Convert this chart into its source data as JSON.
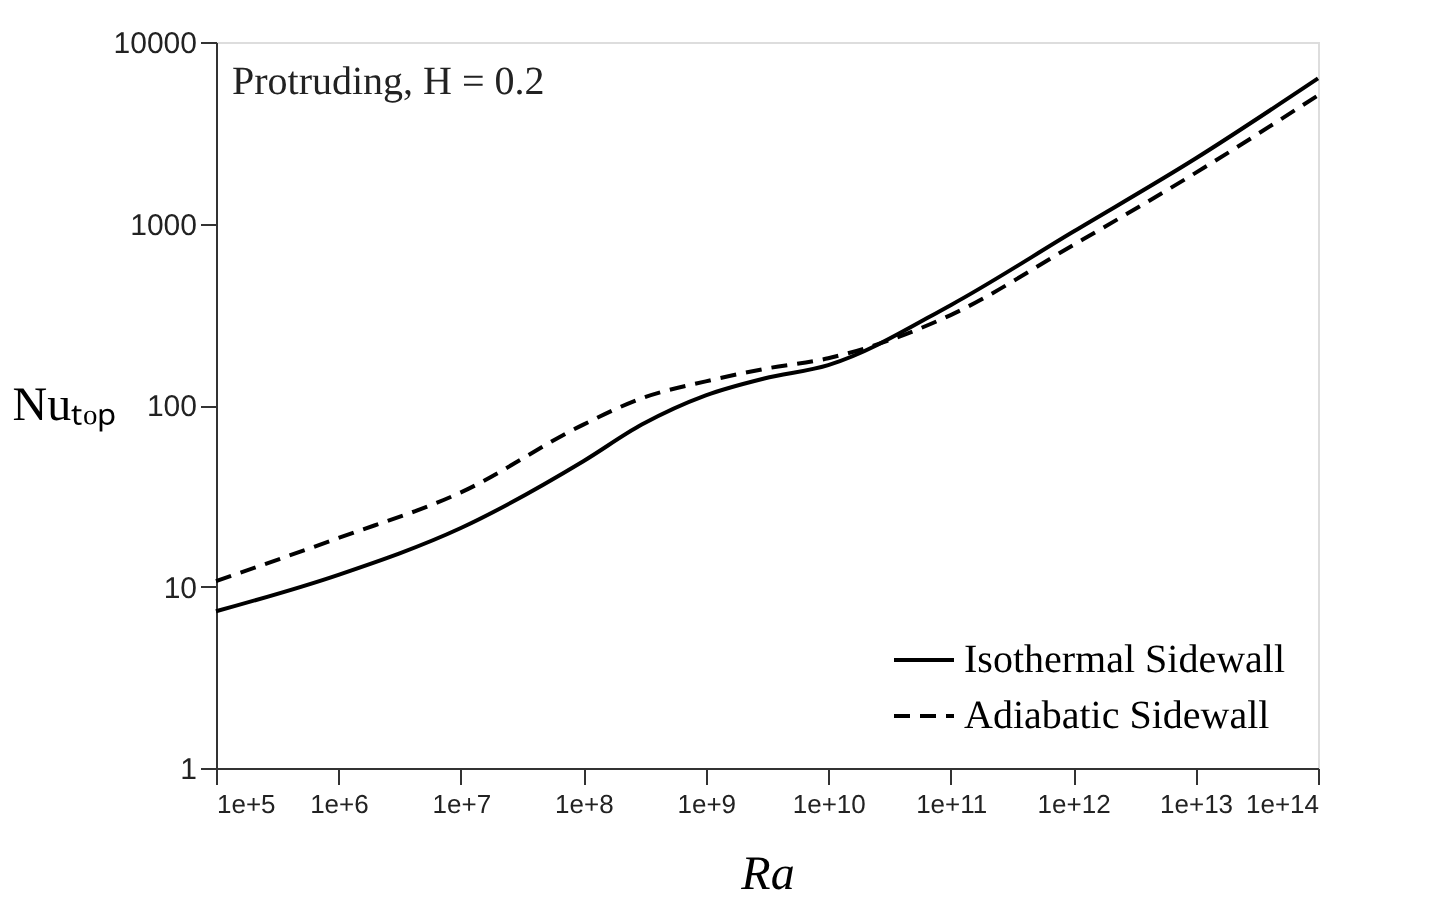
{
  "chart_data": {
    "type": "line",
    "xlabel": "Ra",
    "ylabel": "Nuₜₒₚ",
    "log": "xy",
    "grid": false,
    "legend": "bottom right",
    "annotations": [
      "Protruding, H = 0.2"
    ],
    "xlim": [
      100000,
      100000000000000
    ],
    "ylim": [
      1,
      10000
    ],
    "yticks": [
      1,
      10,
      100,
      1000,
      10000
    ],
    "xticks": [
      {
        "value": 100000,
        "label": "1e+5"
      },
      {
        "value": 1000000,
        "label": "1e+6"
      },
      {
        "value": 10000000,
        "label": "1e+7"
      },
      {
        "value": 100000000,
        "label": "1e+8"
      },
      {
        "value": 1000000000,
        "label": "1e+9"
      },
      {
        "value": 10000000000,
        "label": "1e+10"
      },
      {
        "value": 100000000000,
        "label": "1e+11"
      },
      {
        "value": 1000000000000,
        "label": "1e+12"
      },
      {
        "value": 10000000000000,
        "label": "1e+13"
      },
      {
        "value": 100000000000000,
        "label": "1e+14"
      }
    ],
    "x": [
      100000,
      1000000,
      10000000,
      100000000,
      300000000,
      1000000000,
      3000000000,
      10000000000,
      100000000000,
      1000000000000,
      10000000000000,
      100000000000000
    ],
    "series": [
      {
        "name": "Isothermal Sidewall",
        "color": "#000000",
        "line_style": "solid",
        "values": [
          7.3,
          11.6,
          21,
          49,
          78,
          113,
          140,
          166,
          355,
          900,
          2280,
          6300
        ]
      },
      {
        "name": "Adiabatic Sidewall",
        "color": "#000000",
        "line_style": "dashed",
        "values": [
          10.7,
          18.5,
          33,
          78,
          109,
          135,
          158,
          181,
          313,
          760,
          1900,
          5080
        ]
      }
    ]
  }
}
